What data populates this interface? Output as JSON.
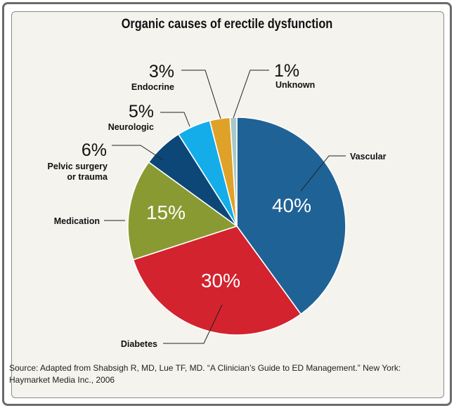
{
  "chart_data": {
    "type": "pie",
    "title": "Organic causes of erectile dysfunction",
    "slices": [
      {
        "label": "Vascular",
        "value": 40,
        "display": "40%",
        "color": "#1f6296",
        "label_style": "inside"
      },
      {
        "label": "Diabetes",
        "value": 30,
        "display": "30%",
        "color": "#d3232e",
        "label_style": "inside"
      },
      {
        "label": "Medication",
        "value": 15,
        "display": "15%",
        "color": "#8a9a32",
        "label_style": "inside"
      },
      {
        "label": "Pelvic surgery or trauma",
        "label_lines": [
          "Pelvic surgery",
          "or trauma"
        ],
        "value": 6,
        "display": "6%",
        "color": "#0d4778",
        "label_style": "outside"
      },
      {
        "label": "Neurologic",
        "value": 5,
        "display": "5%",
        "color": "#14adea",
        "label_style": "outside"
      },
      {
        "label": "Endocrine",
        "value": 3,
        "display": "3%",
        "color": "#e0a128",
        "label_style": "outside"
      },
      {
        "label": "Unknown",
        "value": 1,
        "display": "1%",
        "color": "#a9c8c8",
        "label_style": "outside"
      }
    ],
    "start": "12 o'clock",
    "direction": "clockwise"
  },
  "source": "Source: Adapted from Shabsigh R, MD, Lue TF, MD. “A Clinician’s Guide to ED Management.” New York: Haymarket Media Inc., 2006"
}
